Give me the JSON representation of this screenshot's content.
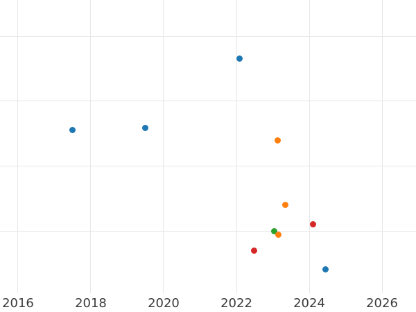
{
  "chart_data": {
    "type": "scatter",
    "title": "",
    "xlabel": "",
    "ylabel": "",
    "grid": true,
    "legend": "none",
    "background_color": "#ffffff",
    "gridline_color": "#e7e7e7",
    "tick_label_color": "#3b3b3b",
    "x_ticks": [
      2016,
      2018,
      2020,
      2022,
      2024,
      2026
    ],
    "x_tick_labels": [
      "2016",
      "2018",
      "2020",
      "2022",
      "2024",
      "2026"
    ],
    "y_tick_labels": [],
    "y_axis_note": "y tick labels are cropped out of frame; y values estimated in gridline units (one unit per horizontal gridline)",
    "y_gridline_values": [
      1,
      2,
      3,
      4
    ],
    "xlim": [
      2015.505,
      2026.933
    ],
    "ylim": [
      0.043,
      4.555
    ],
    "series": [
      {
        "name": "blue",
        "color": "#1f77b4",
        "points": [
          {
            "x": 2017.5,
            "y": 2.55
          },
          {
            "x": 2019.5,
            "y": 2.59
          },
          {
            "x": 2022.08,
            "y": 3.65
          },
          {
            "x": 2024.44,
            "y": 0.41
          }
        ]
      },
      {
        "name": "green",
        "color": "#2ca02c",
        "points": [
          {
            "x": 2023.03,
            "y": 1.0
          }
        ]
      },
      {
        "name": "orange",
        "color": "#ff7f0e",
        "points": [
          {
            "x": 2023.14,
            "y": 2.4
          },
          {
            "x": 2023.35,
            "y": 1.4
          },
          {
            "x": 2023.16,
            "y": 0.94
          }
        ]
      },
      {
        "name": "red",
        "color": "#d62728",
        "points": [
          {
            "x": 2024.11,
            "y": 1.1
          },
          {
            "x": 2022.48,
            "y": 0.7
          }
        ]
      }
    ]
  }
}
